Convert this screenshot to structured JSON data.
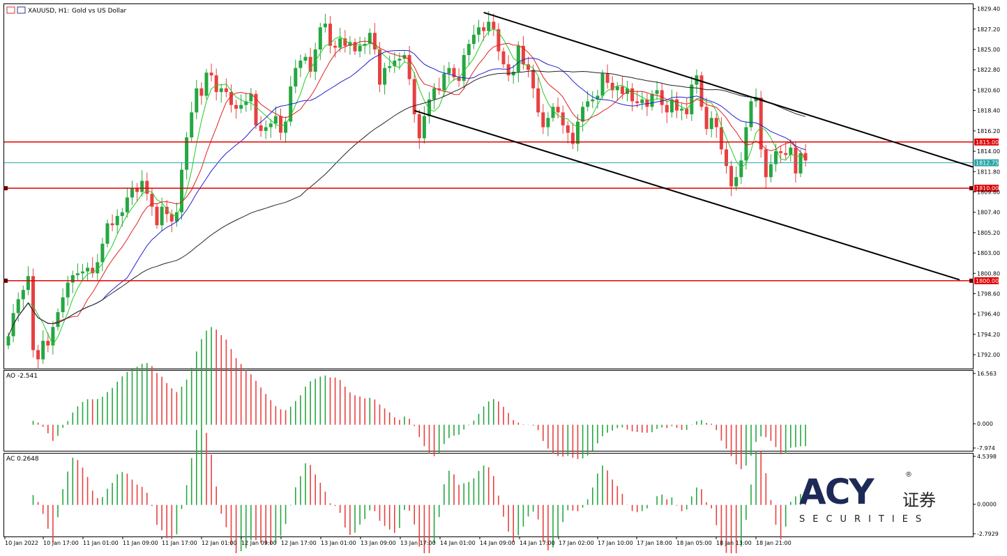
{
  "window": {
    "symbol": "XAUUSD, H1:",
    "description": "Gold vs US Dollar"
  },
  "chart_data": [
    {
      "type": "candlestick",
      "panel": "main",
      "ylim": [
        1790.5,
        1829.9
      ],
      "yticks": [
        "1829.40",
        "1827.20",
        "1825.00",
        "1822.80",
        "1820.60",
        "1818.40",
        "1816.20",
        "1814.00",
        "1811.80",
        "1809.60",
        "1807.40",
        "1805.20",
        "1803.00",
        "1800.80",
        "1798.60",
        "1796.40",
        "1794.20",
        "1792.00"
      ],
      "xticks": [
        "10 Jan 2022",
        "10 Jan 17:00",
        "11 Jan 01:00",
        "11 Jan 09:00",
        "11 Jan 17:00",
        "12 Jan 01:00",
        "12 Jan 09:00",
        "12 Jan 17:00",
        "13 Jan 01:00",
        "13 Jan 09:00",
        "13 Jan 17:00",
        "14 Jan 01:00",
        "14 Jan 09:00",
        "14 Jan 17:00",
        "17 Jan 02:00",
        "17 Jan 10:00",
        "17 Jan 18:00",
        "18 Jan 05:00",
        "18 Jan 13:00",
        "18 Jan 21:00"
      ],
      "candles_close": [
        1794,
        1796.5,
        1798,
        1799,
        1800.5,
        1792.5,
        1791.5,
        1793.5,
        1793,
        1795,
        1796.6,
        1798.2,
        1799.8,
        1800.6,
        1800.8,
        1801,
        1801.4,
        1800.8,
        1802,
        1804,
        1806.2,
        1806,
        1807,
        1807.4,
        1809,
        1810,
        1809.6,
        1810.8,
        1809.4,
        1808,
        1806,
        1808,
        1807.2,
        1806.4,
        1807.4,
        1812,
        1815.5,
        1818.2,
        1820.8,
        1820,
        1822.5,
        1822.2,
        1820.4,
        1820.8,
        1820.4,
        1819,
        1818.6,
        1819,
        1819.4,
        1820.2,
        1816.8,
        1816.2,
        1816.6,
        1817,
        1817.8,
        1816,
        1817.2,
        1821,
        1823,
        1823.8,
        1824.2,
        1822.6,
        1825,
        1827.4,
        1827.8,
        1825.4,
        1825.2,
        1826.2,
        1825.4,
        1825.8,
        1824.8,
        1825.4,
        1825.6,
        1826.8,
        1825,
        1821.2,
        1823,
        1823.2,
        1823.8,
        1824,
        1824.4,
        1821.8,
        1818,
        1815.4,
        1817.8,
        1819.6,
        1820.8,
        1820.6,
        1822.4,
        1823,
        1822,
        1821.6,
        1824.4,
        1825.6,
        1826.6,
        1827.4,
        1827,
        1828,
        1827.2,
        1824.8,
        1823.4,
        1822.2,
        1822.6,
        1825.4,
        1823.4,
        1822.8,
        1820.8,
        1818.2,
        1816.6,
        1817.6,
        1818.8,
        1818.2,
        1816.8,
        1816,
        1814.8,
        1817.2,
        1818.8,
        1819.4,
        1819.6,
        1820,
        1822.4,
        1821.4,
        1820.6,
        1821,
        1820.2,
        1820.8,
        1819.4,
        1819.2,
        1819.6,
        1818.8,
        1820.2,
        1820.6,
        1819,
        1818.2,
        1819.6,
        1818.4,
        1818.6,
        1818,
        1821.2,
        1822.2,
        1818.8,
        1816.4,
        1817.6,
        1816.6,
        1814.2,
        1812.4,
        1810.2,
        1811.2,
        1813,
        1816.6,
        1819.4,
        1819.8,
        1814.2,
        1811.2,
        1812.6,
        1814,
        1813.8,
        1813.6,
        1814.4,
        1811.6,
        1813.8,
        1813
      ],
      "last_price": "1812.75",
      "horizontal_levels": [
        "1815.00",
        "1810.00",
        "1800.00"
      ],
      "indicators": [
        "SMA(green)",
        "SMA(red)",
        "SMA(blue)",
        "SMA(black)"
      ]
    },
    {
      "type": "histogram",
      "panel": "AO",
      "label": "AO -2.541",
      "ylim": [
        -7.974,
        16.563
      ],
      "yticks": [
        "16.563",
        "0.000",
        "-7.974"
      ]
    },
    {
      "type": "histogram",
      "panel": "AC",
      "label": "AC 0.2648",
      "ylim": [
        -2.7929,
        4.5398
      ],
      "yticks": [
        "4.5398",
        "0.0000",
        "-2.7929"
      ]
    }
  ],
  "logo": {
    "brand": "ACY",
    "chinese": "证券",
    "sub": "SECURITIES",
    "reg": "®"
  }
}
